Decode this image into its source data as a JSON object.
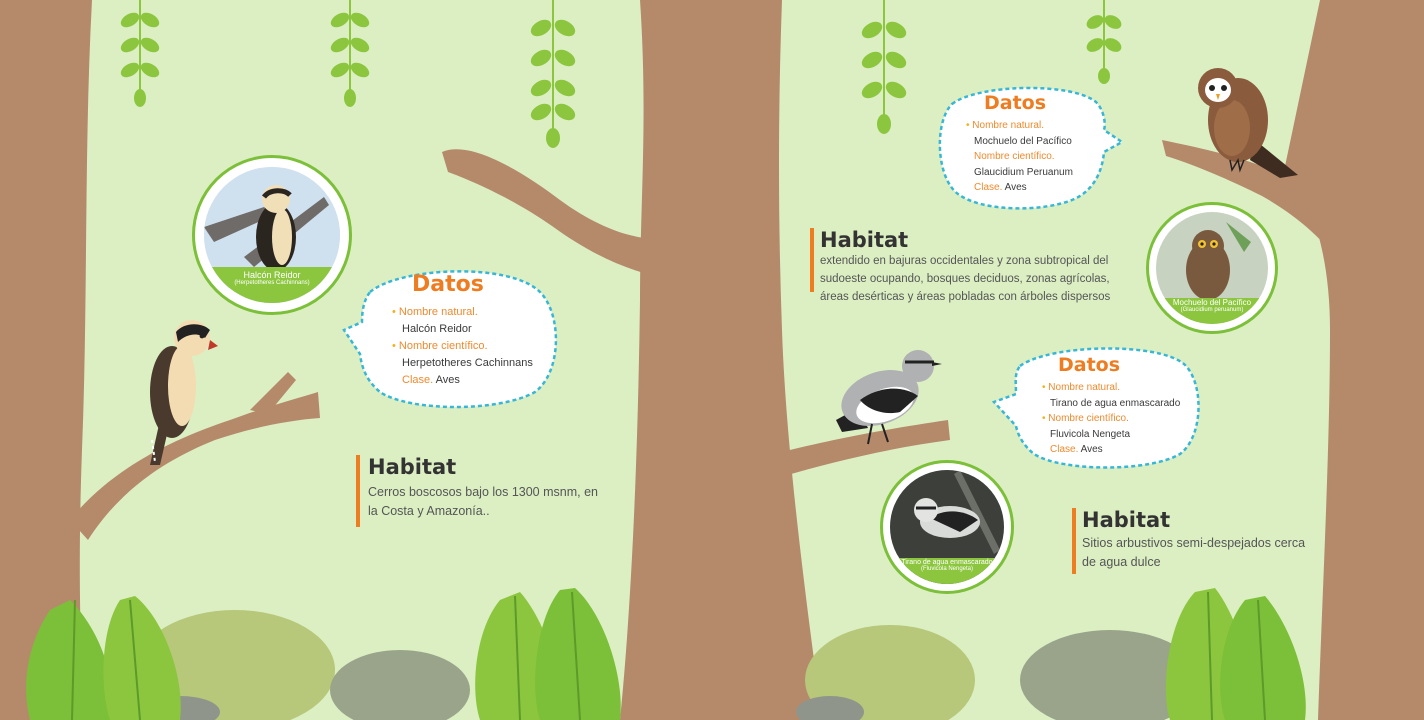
{
  "colors": {
    "background": "#dcefc3",
    "trunk": "#b58a6b",
    "accent": "#ee7d22",
    "leaf_green": "#8cc63f",
    "label_green": "#8cc63f",
    "bubble_border": "#38b6d6"
  },
  "birds": [
    {
      "photo_caption_name": "Halcón Reidor",
      "photo_caption_sci": "(Herpetotheres Cachinnans)",
      "datos_title": "Datos",
      "common_label": "Nombre natural.",
      "common_value": "Halcón Reidor",
      "sci_label": "Nombre científico.",
      "sci_value": "Herpetotheres Cachinnans",
      "class_label": "Clase.",
      "class_value": "Aves",
      "habitat_title": "Habitat",
      "habitat_line1": "Cerros boscosos bajo los 1300 msnm, en",
      "habitat_line2": "la Costa y Amazonía..",
      "icon": "laughing-falcon-illustration"
    },
    {
      "photo_caption_name": "Mochuelo del Pacífico",
      "photo_caption_sci": "(Glaucidium peruanum)",
      "datos_title": "Datos",
      "common_label": "Nombre natural.",
      "common_value": "Mochuelo del Pacífico",
      "sci_label": "Nombre científico.",
      "sci_value": "Glaucidium Peruanum",
      "class_label": "Clase.",
      "class_value": "Aves",
      "habitat_title": "Habitat",
      "habitat_line1": "extendido en bajuras occidentales y zona subtropical del",
      "habitat_line2": "sudoeste ocupando, bosques deciduos, zonas agrícolas,",
      "habitat_line3": "áreas desérticas y áreas pobladas con árboles dispersos",
      "icon": "owl-illustration"
    },
    {
      "photo_caption_name": "Tirano de agua enmascarado",
      "photo_caption_sci": "(Fluvicola Nengeta)",
      "datos_title": "Datos",
      "common_label": "Nombre natural.",
      "common_value": "Tirano de agua enmascarado",
      "sci_label": "Nombre científico.",
      "sci_value": "Fluvicola Nengeta",
      "class_label": "Clase.",
      "class_value": "Aves",
      "habitat_title": "Habitat",
      "habitat_line1": "Sitios arbustivos semi-despejados cerca",
      "habitat_line2": "de agua dulce",
      "icon": "masked-water-tyrant-illustration"
    }
  ]
}
